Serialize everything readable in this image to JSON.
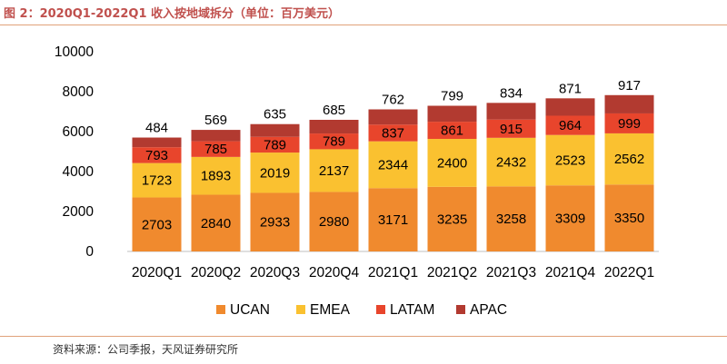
{
  "title": "图 2：2020Q1-2022Q1 收入按地域拆分（单位：百万美元）",
  "source": "资料来源：公司季报，天风证券研究所",
  "chart_data": {
    "type": "bar",
    "stacked": true,
    "categories": [
      "2020Q1",
      "2020Q2",
      "2020Q3",
      "2020Q4",
      "2021Q1",
      "2021Q2",
      "2021Q3",
      "2021Q4",
      "2022Q1"
    ],
    "series": [
      {
        "name": "UCAN",
        "color": "#f08a2e",
        "values": [
          2703,
          2840,
          2933,
          2980,
          3171,
          3235,
          3258,
          3309,
          3350
        ]
      },
      {
        "name": "EMEA",
        "color": "#fac130",
        "values": [
          1723,
          1893,
          2019,
          2137,
          2344,
          2400,
          2432,
          2523,
          2562
        ]
      },
      {
        "name": "LATAM",
        "color": "#e8452c",
        "values": [
          793,
          785,
          789,
          789,
          837,
          861,
          915,
          964,
          999
        ]
      },
      {
        "name": "APAC",
        "color": "#b23a30",
        "values": [
          484,
          569,
          635,
          685,
          762,
          799,
          834,
          871,
          917
        ]
      }
    ],
    "ylim": [
      0,
      10000
    ],
    "yticks": [
      0,
      2000,
      4000,
      6000,
      8000,
      10000
    ],
    "grid": false,
    "legend_position": "bottom"
  }
}
